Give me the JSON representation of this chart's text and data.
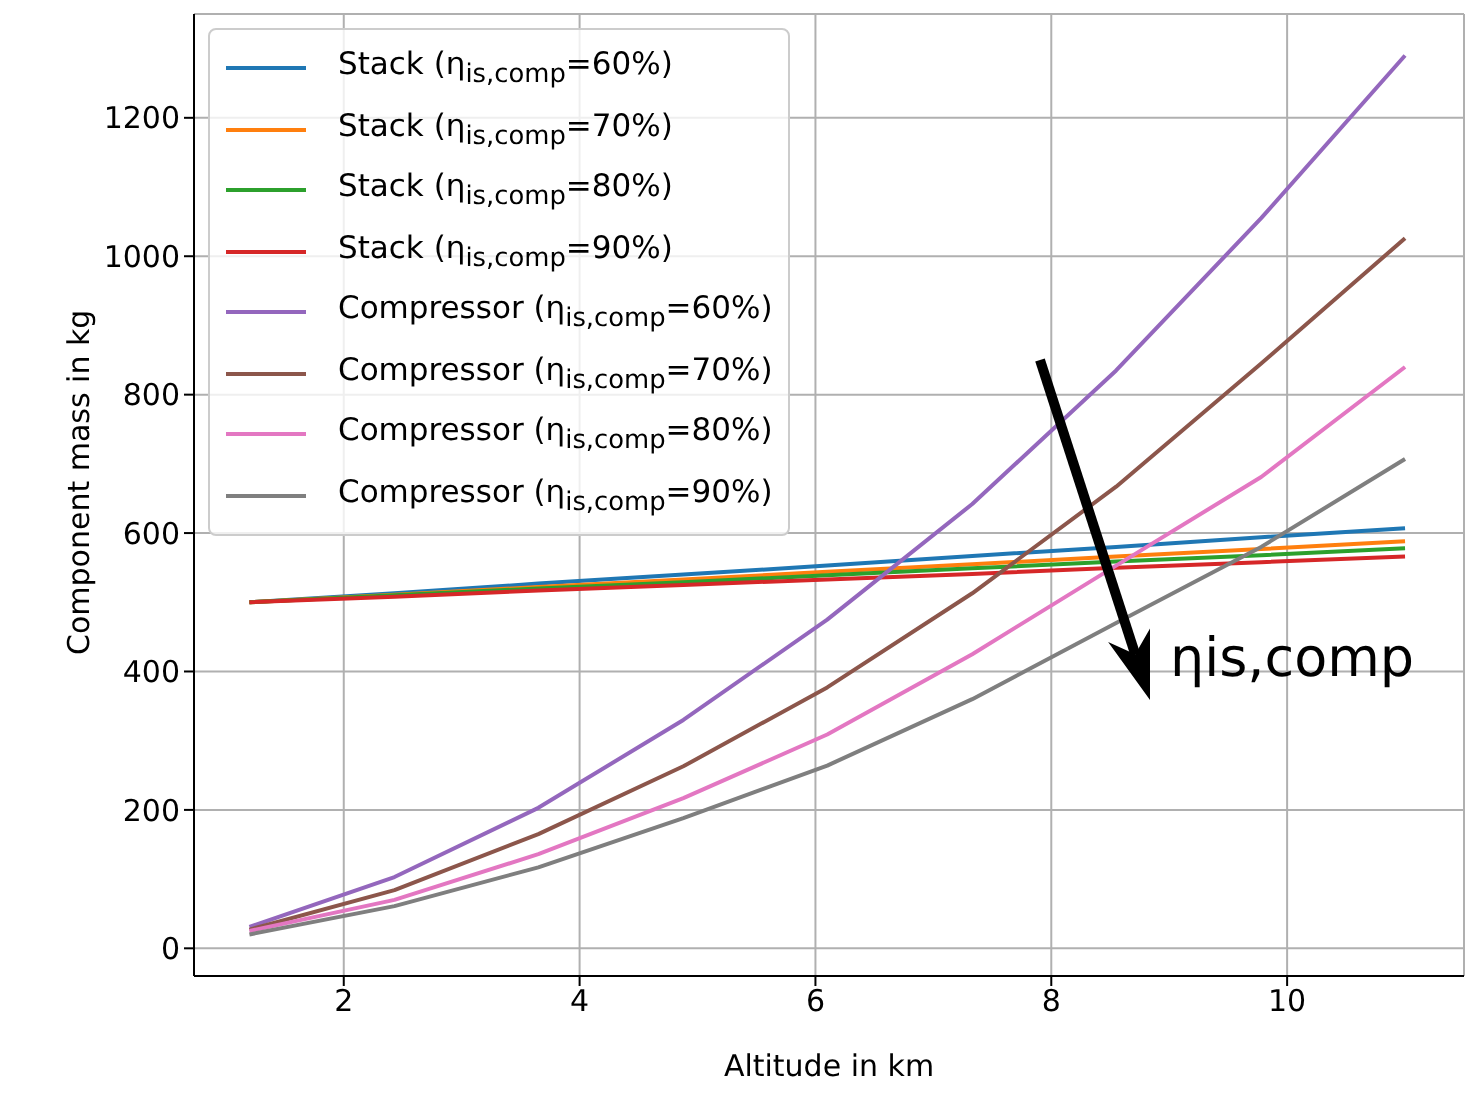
{
  "chart_data": {
    "type": "line",
    "xlabel": "Altitude in km",
    "ylabel": "Component mass in kg",
    "x": [
      1.2,
      2.43,
      3.65,
      4.88,
      6.1,
      7.33,
      8.55,
      9.78,
      11.0
    ],
    "series": [
      {
        "name": "Stack (η$_{is,comp}$=60%)",
        "color": "#1f77b4",
        "values": [
          500,
          513,
          527,
          540,
          553,
          567,
          580,
          594,
          607
        ]
      },
      {
        "name": "Stack (η$_{is,comp}$=70%)",
        "color": "#ff7f0e",
        "values": [
          500,
          511,
          522,
          533,
          544,
          555,
          566,
          577,
          588
        ]
      },
      {
        "name": "Stack (η$_{is,comp}$=80%)",
        "color": "#2ca02c",
        "values": [
          500,
          510,
          520,
          529,
          539,
          549,
          559,
          568,
          578
        ]
      },
      {
        "name": "Stack (η$_{is,comp}$=90%)",
        "color": "#d62728",
        "values": [
          500,
          508,
          517,
          525,
          533,
          541,
          550,
          558,
          566
        ]
      },
      {
        "name": "Compressor (η$_{is,comp}$=60%)",
        "color": "#9467bd",
        "values": [
          31,
          103,
          203,
          330,
          475,
          642,
          835,
          1055,
          1290
        ]
      },
      {
        "name": "Compressor (η$_{is,comp}$=70%)",
        "color": "#8c564b",
        "values": [
          27,
          84,
          165,
          263,
          377,
          513,
          667,
          845,
          1026
        ]
      },
      {
        "name": "Compressor (η$_{is,comp}$=80%)",
        "color": "#e377c2",
        "values": [
          25,
          70,
          136,
          217,
          309,
          425,
          553,
          681,
          840
        ]
      },
      {
        "name": "Compressor (η$_{is,comp}$=90%)",
        "color": "#7f7f7f",
        "values": [
          20,
          61,
          117,
          188,
          264,
          360,
          470,
          580,
          707
        ]
      }
    ],
    "xlim": [
      0.73,
      11.5
    ],
    "xticks": [
      2,
      4,
      6,
      8,
      10
    ],
    "ylim": [
      -40,
      1350
    ],
    "yticks": [
      0,
      200,
      400,
      600,
      800,
      1000,
      1200
    ],
    "grid": true,
    "legend": "top left",
    "marker": "none",
    "line_style": "solid",
    "annotations": [
      "ηis,comp"
    ]
  }
}
